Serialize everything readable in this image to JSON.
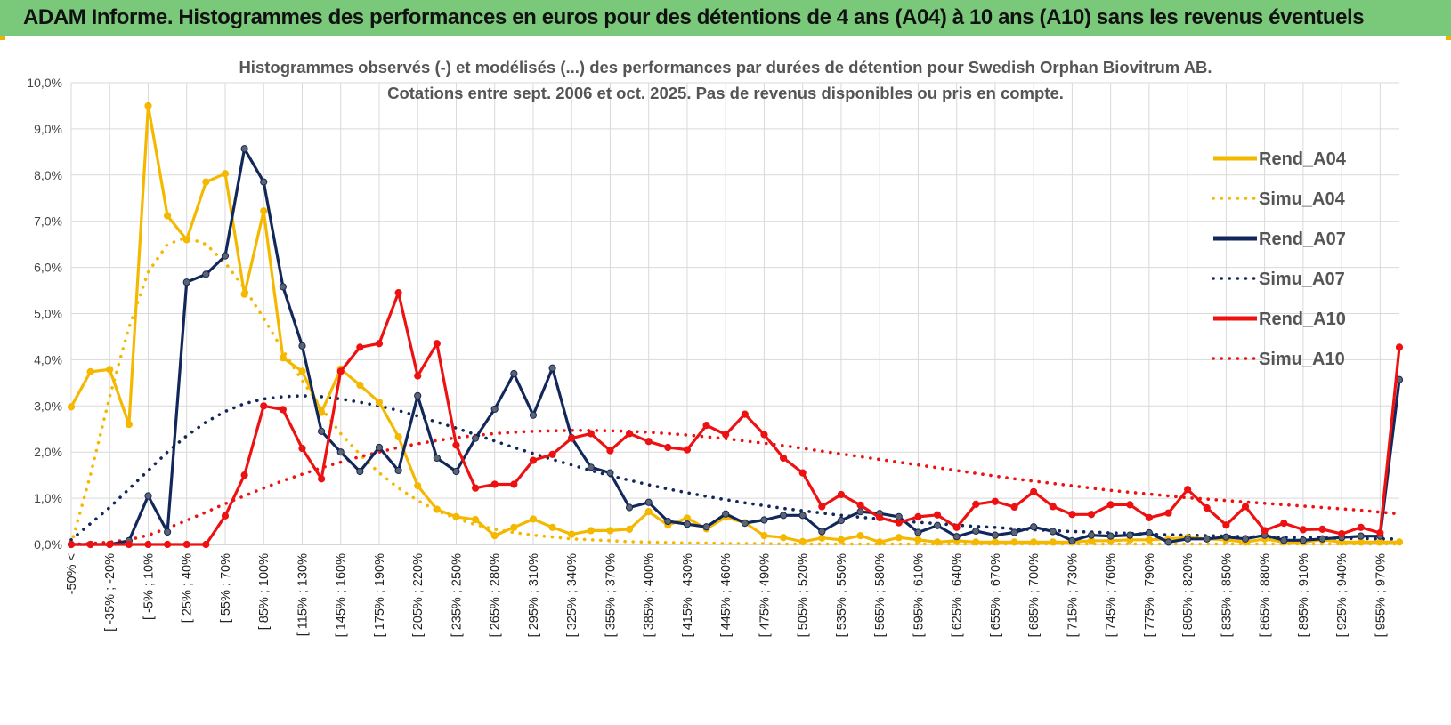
{
  "page": {
    "title": "ADAM Informe. Histogrammes des performances en euros pour des détentions de 4 ans (A04) à 10 ans (A10) sans les revenus éventuels"
  },
  "colors": {
    "A04": "#f5b800",
    "A07": "#13285a",
    "A10": "#ee1111",
    "grid": "#d9d9d9",
    "header": "#7ac97a"
  },
  "chart_data": {
    "type": "line",
    "title_line1": "Histogrammes observés (-) et modélisés (...) des performances par durées de détention pour Swedish Orphan Biovitrum AB.",
    "title_line2": "Cotations entre sept. 2006 et oct. 2025. Pas de revenus disponibles ou pris en compte.",
    "ylim": [
      0,
      10
    ],
    "yticks": [
      "0,0%",
      "1,0%",
      "2,0%",
      "3,0%",
      "4,0%",
      "5,0%",
      "6,0%",
      "7,0%",
      "8,0%",
      "9,0%",
      "10,0%"
    ],
    "x_labels": [
      "-50% <",
      "[ -35% ; -20%",
      "[ -5% ; 10%",
      "[ 25% ; 40%",
      "[ 55% ; 70%",
      "[ 85% ; 100%",
      "[ 115% ; 130%",
      "[ 145% ; 160%",
      "[ 175% ; 190%",
      "[ 205% ; 220%",
      "[ 235% ; 250%",
      "[ 265% ; 280%",
      "[ 295% ; 310%",
      "[ 325% ; 340%",
      "[ 355% ; 370%",
      "[ 385% ; 400%",
      "[ 415% ; 430%",
      "[ 445% ; 460%",
      "[ 475% ; 490%",
      "[ 505% ; 520%",
      "[ 535% ; 550%",
      "[ 565% ; 580%",
      "[ 595% ; 610%",
      "[ 625% ; 640%",
      "[ 655% ; 670%",
      "[ 685% ; 700%",
      "[ 715% ; 730%",
      "[ 745% ; 760%",
      "[ 775% ; 790%",
      "[ 805% ; 820%",
      "[ 835% ; 850%",
      "[ 865% ; 880%",
      "[ 895% ; 910%",
      "[ 925% ; 940%",
      "[ 955% ; 970%"
    ],
    "n_categories": 70,
    "series": [
      {
        "name": "Rend_A04",
        "style": "solid",
        "color_key": "A04",
        "values": [
          2.98,
          3.74,
          3.79,
          2.6,
          9.5,
          7.12,
          6.6,
          7.85,
          8.03,
          5.42,
          7.22,
          4.04,
          3.75,
          2.86,
          3.8,
          3.45,
          3.08,
          2.33,
          1.27,
          0.76,
          0.6,
          0.54,
          0.19,
          0.37,
          0.55,
          0.37,
          0.22,
          0.3,
          0.3,
          0.33,
          0.71,
          0.42,
          0.57,
          0.34,
          0.59,
          0.47,
          0.19,
          0.15,
          0.06,
          0.14,
          0.1,
          0.19,
          0.05,
          0.15,
          0.1,
          0.05,
          0.08,
          0.05,
          0.05,
          0.05,
          0.05,
          0.05,
          0.05,
          0.08,
          0.08,
          0.1,
          0.1,
          0.12,
          0.15,
          0.12,
          0.1,
          0.05,
          0.12,
          0.05,
          0.05,
          0.1,
          0.05,
          0.05,
          0.05,
          0.05
        ]
      },
      {
        "name": "Simu_A04",
        "style": "dotted",
        "color_key": "A04",
        "values": [
          0.0,
          1.5,
          3.2,
          4.7,
          5.9,
          6.5,
          6.65,
          6.5,
          6.1,
          5.55,
          4.9,
          4.2,
          3.55,
          2.95,
          2.4,
          1.95,
          1.55,
          1.22,
          0.95,
          0.73,
          0.56,
          0.43,
          0.33,
          0.26,
          0.2,
          0.16,
          0.12,
          0.1,
          0.08,
          0.06,
          0.05,
          0.04,
          0.03,
          0.03,
          0.02,
          0.02,
          0.02,
          0.01,
          0.01,
          0.01,
          0.01,
          0.01,
          0.01,
          0.01,
          0.01,
          0.01,
          0.01,
          0.01,
          0.01,
          0.01,
          0.01,
          0.01,
          0.01,
          0.01,
          0.01,
          0.01,
          0.01,
          0.01,
          0.01,
          0.01,
          0.01,
          0.01,
          0.01,
          0.01,
          0.01,
          0.01,
          0.01,
          0.01,
          0.01,
          0.01
        ]
      },
      {
        "name": "Rend_A07",
        "style": "solid",
        "color_key": "A07",
        "values": [
          0.0,
          0.0,
          0.0,
          0.08,
          1.05,
          0.27,
          5.68,
          5.85,
          6.25,
          8.57,
          7.85,
          5.58,
          4.3,
          2.45,
          2.0,
          1.58,
          2.1,
          1.6,
          3.22,
          1.87,
          1.58,
          2.3,
          2.93,
          3.7,
          2.8,
          3.82,
          2.31,
          1.67,
          1.55,
          0.8,
          0.91,
          0.5,
          0.44,
          0.38,
          0.66,
          0.46,
          0.53,
          0.63,
          0.63,
          0.28,
          0.52,
          0.71,
          0.67,
          0.6,
          0.26,
          0.41,
          0.17,
          0.29,
          0.2,
          0.26,
          0.38,
          0.28,
          0.08,
          0.2,
          0.18,
          0.2,
          0.25,
          0.05,
          0.12,
          0.12,
          0.16,
          0.12,
          0.2,
          0.09,
          0.09,
          0.12,
          0.15,
          0.18,
          0.18,
          3.57
        ]
      },
      {
        "name": "Simu_A07",
        "style": "dotted",
        "color_key": "A07",
        "values": [
          0.1,
          0.45,
          0.8,
          1.2,
          1.6,
          2.0,
          2.35,
          2.65,
          2.88,
          3.05,
          3.15,
          3.2,
          3.22,
          3.2,
          3.15,
          3.08,
          3.0,
          2.9,
          2.78,
          2.65,
          2.52,
          2.38,
          2.24,
          2.1,
          1.97,
          1.84,
          1.72,
          1.6,
          1.49,
          1.39,
          1.29,
          1.2,
          1.12,
          1.04,
          0.97,
          0.9,
          0.84,
          0.78,
          0.73,
          0.68,
          0.63,
          0.59,
          0.55,
          0.51,
          0.48,
          0.45,
          0.42,
          0.39,
          0.37,
          0.34,
          0.32,
          0.3,
          0.28,
          0.27,
          0.25,
          0.24,
          0.22,
          0.21,
          0.2,
          0.19,
          0.18,
          0.17,
          0.16,
          0.15,
          0.15,
          0.14,
          0.13,
          0.13,
          0.12,
          0.12
        ]
      },
      {
        "name": "Rend_A10",
        "style": "solid",
        "color_key": "A10",
        "values": [
          0.0,
          0.0,
          0.0,
          0.0,
          0.0,
          0.0,
          0.0,
          0.0,
          0.62,
          1.5,
          3.0,
          2.92,
          2.08,
          1.42,
          3.75,
          4.27,
          4.35,
          5.45,
          3.65,
          4.35,
          2.15,
          1.22,
          1.3,
          1.3,
          1.82,
          1.95,
          2.3,
          2.4,
          2.03,
          2.4,
          2.23,
          2.1,
          2.05,
          2.58,
          2.38,
          2.82,
          2.38,
          1.87,
          1.55,
          0.82,
          1.08,
          0.85,
          0.58,
          0.47,
          0.6,
          0.64,
          0.37,
          0.87,
          0.93,
          0.81,
          1.14,
          0.82,
          0.65,
          0.65,
          0.86,
          0.86,
          0.58,
          0.68,
          1.19,
          0.79,
          0.42,
          0.82,
          0.3,
          0.46,
          0.32,
          0.33,
          0.23,
          0.37,
          0.25,
          4.27
        ]
      },
      {
        "name": "Simu_A10",
        "style": "dotted",
        "color_key": "A10",
        "values": [
          0.0,
          0.02,
          0.05,
          0.1,
          0.2,
          0.35,
          0.52,
          0.7,
          0.88,
          1.05,
          1.22,
          1.38,
          1.52,
          1.66,
          1.78,
          1.9,
          2.0,
          2.1,
          2.18,
          2.25,
          2.31,
          2.36,
          2.4,
          2.43,
          2.45,
          2.46,
          2.47,
          2.47,
          2.46,
          2.45,
          2.43,
          2.4,
          2.37,
          2.33,
          2.29,
          2.24,
          2.19,
          2.14,
          2.08,
          2.02,
          1.96,
          1.9,
          1.84,
          1.78,
          1.72,
          1.66,
          1.6,
          1.54,
          1.48,
          1.42,
          1.37,
          1.32,
          1.27,
          1.22,
          1.17,
          1.13,
          1.09,
          1.05,
          1.01,
          0.98,
          0.95,
          0.92,
          0.89,
          0.86,
          0.83,
          0.8,
          0.77,
          0.74,
          0.7,
          0.66
        ]
      }
    ],
    "legend_position": "right"
  }
}
